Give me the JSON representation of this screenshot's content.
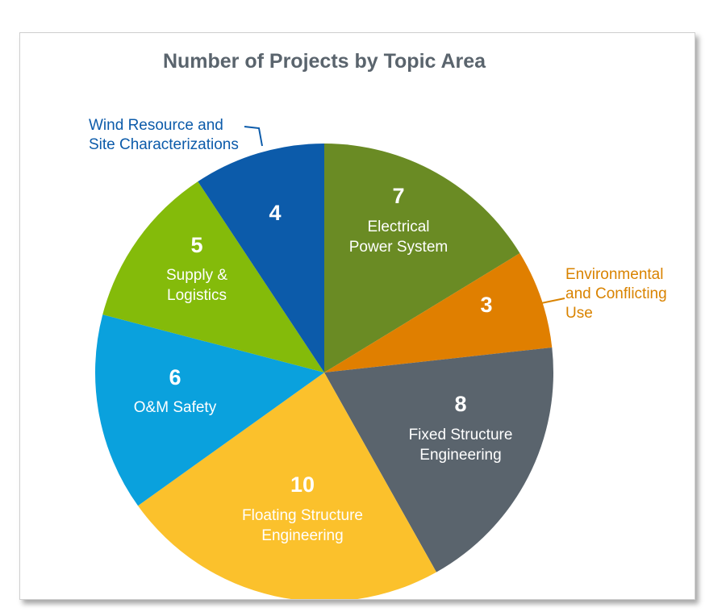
{
  "chart_data": {
    "type": "pie",
    "title": "Number of Projects by Topic Area",
    "start_angle_deg": 0,
    "direction": "clockwise",
    "slices": [
      {
        "value": 7,
        "label_lines": [
          "Electrical",
          "Power System"
        ],
        "color": "#6a8b24",
        "label_placement": "inside"
      },
      {
        "value": 3,
        "label_lines": [
          "Environmental",
          "and Conflicting",
          "Use"
        ],
        "color": "#e07f00",
        "label_placement": "outside",
        "label_color": "#d98300"
      },
      {
        "value": 8,
        "label_lines": [
          "Fixed Structure",
          "Engineering"
        ],
        "color": "#5a646d",
        "label_placement": "inside"
      },
      {
        "value": 10,
        "label_lines": [
          "Floating Structure",
          "Engineering"
        ],
        "color": "#fbc12c",
        "label_placement": "inside",
        "label_color": "#4a4a4a"
      },
      {
        "value": 6,
        "label_lines": [
          "O&M Safety"
        ],
        "color": "#0aa1dd",
        "label_placement": "inside"
      },
      {
        "value": 5,
        "label_lines": [
          "Supply &",
          "Logistics"
        ],
        "color": "#84bb0a",
        "label_placement": "inside"
      },
      {
        "value": 4,
        "label_lines": [
          "Wind Resource and",
          "Site Characterizations"
        ],
        "color": "#0c5baa",
        "label_placement": "outside",
        "label_color": "#0c5baa"
      }
    ]
  }
}
